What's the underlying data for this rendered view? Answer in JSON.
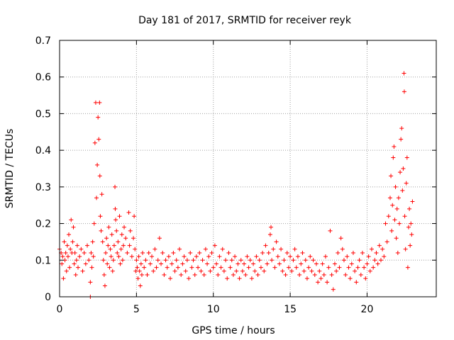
{
  "chart_data": {
    "type": "scatter",
    "title": "Day 181 of 2017, SRMTID for receiver reyk",
    "xlabel": "GPS time / hours",
    "ylabel": "SRMTID / TECUs",
    "xlim": [
      0,
      24.5
    ],
    "ylim": [
      0,
      0.7
    ],
    "x_ticks": [
      0,
      5,
      10,
      15,
      20
    ],
    "x_tick_labels": [
      "0",
      "5",
      "10",
      "15",
      "20"
    ],
    "y_ticks": [
      0,
      0.1,
      0.2,
      0.3,
      0.4,
      0.5,
      0.6,
      0.7
    ],
    "y_tick_labels": [
      "0",
      "0.1",
      "0.2",
      "0.3",
      "0.4",
      "0.5",
      "0.6",
      "0.7"
    ],
    "grid": true,
    "marker": "+",
    "series_color": "#ff0000",
    "series": [
      {
        "name": "SRMTID",
        "points": [
          [
            0.0,
            0.13
          ],
          [
            0.1,
            0.12
          ],
          [
            0.15,
            0.09
          ],
          [
            0.2,
            0.11
          ],
          [
            0.25,
            0.05
          ],
          [
            0.3,
            0.15
          ],
          [
            0.35,
            0.1
          ],
          [
            0.4,
            0.12
          ],
          [
            0.45,
            0.07
          ],
          [
            0.5,
            0.14
          ],
          [
            0.55,
            0.11
          ],
          [
            0.6,
            0.17
          ],
          [
            0.65,
            0.08
          ],
          [
            0.7,
            0.13
          ],
          [
            0.75,
            0.21
          ],
          [
            0.8,
            0.12
          ],
          [
            0.85,
            0.15
          ],
          [
            0.9,
            0.19
          ],
          [
            0.95,
            0.09
          ],
          [
            1.0,
            0.12
          ],
          [
            1.05,
            0.06
          ],
          [
            1.1,
            0.1
          ],
          [
            1.15,
            0.14
          ],
          [
            1.2,
            0.08
          ],
          [
            1.3,
            0.11
          ],
          [
            1.4,
            0.13
          ],
          [
            1.5,
            0.07
          ],
          [
            1.6,
            0.12
          ],
          [
            1.7,
            0.09
          ],
          [
            1.8,
            0.14
          ],
          [
            1.9,
            0.1
          ],
          [
            2.0,
            0.04
          ],
          [
            2.0,
            0.0
          ],
          [
            2.05,
            0.12
          ],
          [
            2.1,
            0.08
          ],
          [
            2.15,
            0.15
          ],
          [
            2.2,
            0.11
          ],
          [
            2.25,
            0.2
          ],
          [
            2.3,
            0.42
          ],
          [
            2.35,
            0.53
          ],
          [
            2.4,
            0.27
          ],
          [
            2.45,
            0.36
          ],
          [
            2.5,
            0.49
          ],
          [
            2.55,
            0.43
          ],
          [
            2.6,
            0.53
          ],
          [
            2.62,
            0.33
          ],
          [
            2.65,
            0.22
          ],
          [
            2.7,
            0.18
          ],
          [
            2.75,
            0.28
          ],
          [
            2.8,
            0.15
          ],
          [
            2.85,
            0.1
          ],
          [
            2.9,
            0.06
          ],
          [
            2.95,
            0.03
          ],
          [
            3.0,
            0.12
          ],
          [
            3.05,
            0.16
          ],
          [
            3.1,
            0.09
          ],
          [
            3.15,
            0.14
          ],
          [
            3.2,
            0.19
          ],
          [
            3.25,
            0.08
          ],
          [
            3.3,
            0.13
          ],
          [
            3.35,
            0.11
          ],
          [
            3.4,
            0.17
          ],
          [
            3.45,
            0.07
          ],
          [
            3.5,
            0.1
          ],
          [
            3.55,
            0.14
          ],
          [
            3.6,
            0.3
          ],
          [
            3.62,
            0.24
          ],
          [
            3.65,
            0.21
          ],
          [
            3.7,
            0.18
          ],
          [
            3.75,
            0.12
          ],
          [
            3.8,
            0.15
          ],
          [
            3.85,
            0.11
          ],
          [
            3.9,
            0.22
          ],
          [
            3.95,
            0.09
          ],
          [
            4.0,
            0.13
          ],
          [
            4.05,
            0.17
          ],
          [
            4.1,
            0.1
          ],
          [
            4.15,
            0.14
          ],
          [
            4.2,
            0.19
          ],
          [
            4.3,
            0.16
          ],
          [
            4.4,
            0.12
          ],
          [
            4.5,
            0.23
          ],
          [
            4.55,
            0.14
          ],
          [
            4.6,
            0.18
          ],
          [
            4.7,
            0.11
          ],
          [
            4.8,
            0.16
          ],
          [
            4.85,
            0.22
          ],
          [
            4.9,
            0.13
          ],
          [
            4.95,
            0.07
          ],
          [
            5.0,
            0.1
          ],
          [
            5.05,
            0.08
          ],
          [
            5.1,
            0.05
          ],
          [
            5.15,
            0.11
          ],
          [
            5.2,
            0.07
          ],
          [
            5.25,
            0.03
          ],
          [
            5.3,
            0.09
          ],
          [
            5.35,
            0.06
          ],
          [
            5.4,
            0.12
          ],
          [
            5.5,
            0.08
          ],
          [
            5.6,
            0.1
          ],
          [
            5.7,
            0.06
          ],
          [
            5.8,
            0.12
          ],
          [
            5.9,
            0.09
          ],
          [
            6.0,
            0.11
          ],
          [
            6.1,
            0.07
          ],
          [
            6.2,
            0.13
          ],
          [
            6.3,
            0.08
          ],
          [
            6.4,
            0.1
          ],
          [
            6.5,
            0.16
          ],
          [
            6.6,
            0.09
          ],
          [
            6.7,
            0.12
          ],
          [
            6.8,
            0.06
          ],
          [
            6.9,
            0.1
          ],
          [
            7.0,
            0.08
          ],
          [
            7.1,
            0.11
          ],
          [
            7.2,
            0.05
          ],
          [
            7.3,
            0.09
          ],
          [
            7.4,
            0.12
          ],
          [
            7.5,
            0.07
          ],
          [
            7.6,
            0.1
          ],
          [
            7.7,
            0.08
          ],
          [
            7.8,
            0.13
          ],
          [
            7.9,
            0.06
          ],
          [
            8.0,
            0.09
          ],
          [
            8.1,
            0.11
          ],
          [
            8.2,
            0.07
          ],
          [
            8.3,
            0.1
          ],
          [
            8.4,
            0.05
          ],
          [
            8.5,
            0.12
          ],
          [
            8.6,
            0.08
          ],
          [
            8.7,
            0.1
          ],
          [
            8.8,
            0.06
          ],
          [
            8.9,
            0.11
          ],
          [
            9.0,
            0.08
          ],
          [
            9.1,
            0.12
          ],
          [
            9.2,
            0.07
          ],
          [
            9.3,
            0.1
          ],
          [
            9.4,
            0.06
          ],
          [
            9.5,
            0.13
          ],
          [
            9.6,
            0.09
          ],
          [
            9.7,
            0.11
          ],
          [
            9.8,
            0.07
          ],
          [
            9.9,
            0.12
          ],
          [
            10.0,
            0.08
          ],
          [
            10.1,
            0.14
          ],
          [
            10.2,
            0.09
          ],
          [
            10.3,
            0.06
          ],
          [
            10.4,
            0.11
          ],
          [
            10.5,
            0.08
          ],
          [
            10.6,
            0.13
          ],
          [
            10.7,
            0.07
          ],
          [
            10.8,
            0.1
          ],
          [
            10.9,
            0.05
          ],
          [
            11.0,
            0.12
          ],
          [
            11.1,
            0.08
          ],
          [
            11.2,
            0.1
          ],
          [
            11.3,
            0.06
          ],
          [
            11.4,
            0.11
          ],
          [
            11.5,
            0.07
          ],
          [
            11.6,
            0.09
          ],
          [
            11.7,
            0.05
          ],
          [
            11.8,
            0.1
          ],
          [
            11.9,
            0.07
          ],
          [
            12.0,
            0.09
          ],
          [
            12.1,
            0.06
          ],
          [
            12.2,
            0.11
          ],
          [
            12.3,
            0.08
          ],
          [
            12.4,
            0.1
          ],
          [
            12.5,
            0.05
          ],
          [
            12.6,
            0.09
          ],
          [
            12.7,
            0.07
          ],
          [
            12.8,
            0.11
          ],
          [
            12.9,
            0.06
          ],
          [
            13.0,
            0.1
          ],
          [
            13.1,
            0.08
          ],
          [
            13.2,
            0.12
          ],
          [
            13.3,
            0.07
          ],
          [
            13.4,
            0.14
          ],
          [
            13.5,
            0.09
          ],
          [
            13.6,
            0.12
          ],
          [
            13.7,
            0.17
          ],
          [
            13.75,
            0.19
          ],
          [
            13.8,
            0.1
          ],
          [
            13.9,
            0.13
          ],
          [
            14.0,
            0.08
          ],
          [
            14.1,
            0.15
          ],
          [
            14.2,
            0.11
          ],
          [
            14.3,
            0.09
          ],
          [
            14.4,
            0.13
          ],
          [
            14.5,
            0.07
          ],
          [
            14.6,
            0.1
          ],
          [
            14.7,
            0.06
          ],
          [
            14.8,
            0.12
          ],
          [
            14.9,
            0.08
          ],
          [
            15.0,
            0.11
          ],
          [
            15.1,
            0.07
          ],
          [
            15.2,
            0.1
          ],
          [
            15.3,
            0.13
          ],
          [
            15.4,
            0.08
          ],
          [
            15.5,
            0.11
          ],
          [
            15.6,
            0.06
          ],
          [
            15.7,
            0.09
          ],
          [
            15.8,
            0.12
          ],
          [
            15.9,
            0.07
          ],
          [
            16.0,
            0.1
          ],
          [
            16.1,
            0.05
          ],
          [
            16.2,
            0.08
          ],
          [
            16.3,
            0.11
          ],
          [
            16.4,
            0.07
          ],
          [
            16.5,
            0.1
          ],
          [
            16.6,
            0.06
          ],
          [
            16.7,
            0.09
          ],
          [
            16.8,
            0.04
          ],
          [
            16.9,
            0.07
          ],
          [
            17.0,
            0.05
          ],
          [
            17.1,
            0.09
          ],
          [
            17.2,
            0.06
          ],
          [
            17.3,
            0.11
          ],
          [
            17.4,
            0.04
          ],
          [
            17.5,
            0.08
          ],
          [
            17.6,
            0.18
          ],
          [
            17.7,
            0.06
          ],
          [
            17.8,
            0.02
          ],
          [
            17.9,
            0.09
          ],
          [
            18.0,
            0.07
          ],
          [
            18.1,
            0.12
          ],
          [
            18.2,
            0.08
          ],
          [
            18.3,
            0.16
          ],
          [
            18.4,
            0.13
          ],
          [
            18.5,
            0.1
          ],
          [
            18.6,
            0.06
          ],
          [
            18.7,
            0.11
          ],
          [
            18.8,
            0.08
          ],
          [
            18.9,
            0.05
          ],
          [
            19.0,
            0.09
          ],
          [
            19.1,
            0.12
          ],
          [
            19.2,
            0.07
          ],
          [
            19.3,
            0.04
          ],
          [
            19.4,
            0.08
          ],
          [
            19.5,
            0.1
          ],
          [
            19.6,
            0.06
          ],
          [
            19.7,
            0.12
          ],
          [
            19.8,
            0.08
          ],
          [
            19.9,
            0.05
          ],
          [
            20.0,
            0.09
          ],
          [
            20.1,
            0.11
          ],
          [
            20.2,
            0.07
          ],
          [
            20.3,
            0.13
          ],
          [
            20.4,
            0.08
          ],
          [
            20.5,
            0.1
          ],
          [
            20.6,
            0.12
          ],
          [
            20.7,
            0.09
          ],
          [
            20.8,
            0.14
          ],
          [
            20.9,
            0.1
          ],
          [
            21.0,
            0.13
          ],
          [
            21.1,
            0.11
          ],
          [
            21.2,
            0.2
          ],
          [
            21.3,
            0.15
          ],
          [
            21.4,
            0.22
          ],
          [
            21.5,
            0.27
          ],
          [
            21.55,
            0.33
          ],
          [
            21.6,
            0.18
          ],
          [
            21.65,
            0.25
          ],
          [
            21.7,
            0.38
          ],
          [
            21.75,
            0.41
          ],
          [
            21.8,
            0.21
          ],
          [
            21.85,
            0.3
          ],
          [
            21.9,
            0.16
          ],
          [
            21.95,
            0.24
          ],
          [
            22.0,
            0.12
          ],
          [
            22.05,
            0.27
          ],
          [
            22.1,
            0.2
          ],
          [
            22.15,
            0.34
          ],
          [
            22.2,
            0.43
          ],
          [
            22.25,
            0.46
          ],
          [
            22.3,
            0.29
          ],
          [
            22.35,
            0.35
          ],
          [
            22.4,
            0.61
          ],
          [
            22.42,
            0.56
          ],
          [
            22.45,
            0.22
          ],
          [
            22.5,
            0.13
          ],
          [
            22.55,
            0.31
          ],
          [
            22.6,
            0.38
          ],
          [
            22.65,
            0.08
          ],
          [
            22.7,
            0.19
          ],
          [
            22.75,
            0.24
          ],
          [
            22.8,
            0.14
          ],
          [
            22.85,
            0.2
          ],
          [
            22.9,
            0.17
          ],
          [
            22.95,
            0.26
          ]
        ]
      }
    ]
  }
}
